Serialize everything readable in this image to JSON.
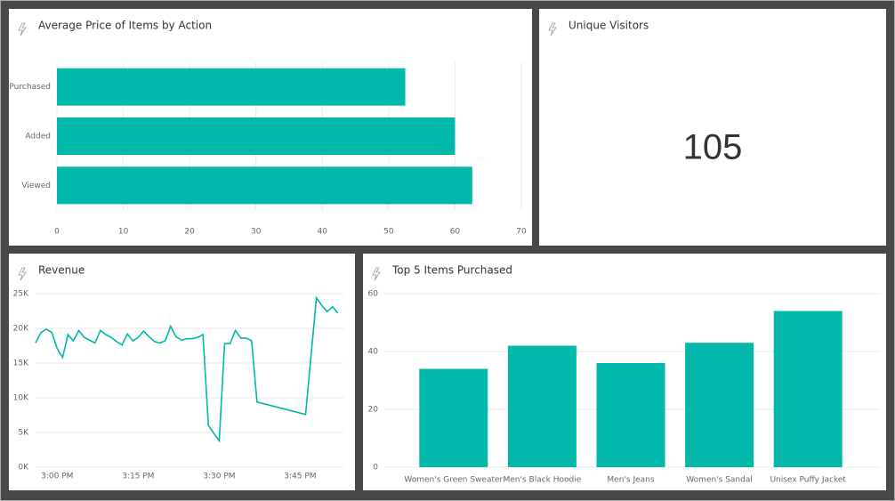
{
  "chart_data": [
    {
      "type": "bar",
      "orientation": "horizontal",
      "title": "Average Price of Items by Action",
      "categories": [
        "Purchased",
        "Added",
        "Viewed"
      ],
      "values": [
        52.5,
        60,
        62.6
      ],
      "color": "#01b8aa",
      "xlim": [
        0,
        70
      ],
      "xticks": [
        0,
        10,
        20,
        30,
        40,
        50,
        60,
        70
      ],
      "grid": true
    },
    {
      "type": "card",
      "title": "Unique Visitors",
      "value": 105
    },
    {
      "type": "line",
      "title": "Revenue",
      "color": "#01b8aa",
      "x": [
        "2:56 PM",
        "2:57 PM",
        "2:58 PM",
        "2:59 PM",
        "3:00 PM",
        "3:01 PM",
        "3:02 PM",
        "3:03 PM",
        "3:04 PM",
        "3:05 PM",
        "3:06 PM",
        "3:07 PM",
        "3:08 PM",
        "3:09 PM",
        "3:10 PM",
        "3:11 PM",
        "3:12 PM",
        "3:13 PM",
        "3:14 PM",
        "3:15 PM",
        "3:16 PM",
        "3:17 PM",
        "3:18 PM",
        "3:19 PM",
        "3:20 PM",
        "3:21 PM",
        "3:22 PM",
        "3:23 PM",
        "3:24 PM",
        "3:25 PM",
        "3:26 PM",
        "3:27 PM",
        "3:28 PM",
        "3:29 PM",
        "3:30 PM",
        "3:31 PM",
        "3:32 PM",
        "3:33 PM",
        "3:34 PM",
        "3:35 PM",
        "3:36 PM",
        "3:37 PM",
        "3:46 PM",
        "3:47 PM",
        "3:48 PM",
        "3:49 PM",
        "3:50 PM",
        "3:51 PM",
        "3:52 PM"
      ],
      "values": [
        17900,
        19400,
        19900,
        19400,
        17100,
        15800,
        19100,
        18200,
        19700,
        18700,
        18300,
        17900,
        19700,
        19100,
        18700,
        18100,
        17600,
        19200,
        18200,
        18700,
        19600,
        18800,
        18100,
        17900,
        18200,
        20300,
        18800,
        18300,
        18500,
        18500,
        18700,
        19100,
        6000,
        4900,
        3800,
        17800,
        17800,
        19700,
        18600,
        18600,
        18200,
        9400,
        7600,
        16000,
        24400,
        23300,
        22400,
        23100,
        22200
      ],
      "xlim": [
        "2:56 PM",
        "3:53 PM"
      ],
      "xticks": [
        "3:00 PM",
        "3:15 PM",
        "3:30 PM",
        "3:45 PM"
      ],
      "ylim": [
        0,
        25000
      ],
      "yticks": [
        {
          "value": 0,
          "label": "0K"
        },
        {
          "value": 5000,
          "label": "5K"
        },
        {
          "value": 10000,
          "label": "10K"
        },
        {
          "value": 15000,
          "label": "15K"
        },
        {
          "value": 20000,
          "label": "20K"
        },
        {
          "value": 25000,
          "label": "25K"
        }
      ],
      "grid": true
    },
    {
      "type": "bar",
      "title": "Top 5 Items Purchased",
      "categories": [
        "Women's Green Sweater",
        "Men's Black Hoodie",
        "Men's Jeans",
        "Women's Sandal",
        "Unisex Puffy Jacket"
      ],
      "values": [
        34,
        42,
        36,
        43,
        54
      ],
      "color": "#01b8aa",
      "ylim": [
        0,
        60
      ],
      "yticks": [
        0,
        20,
        40,
        60
      ],
      "grid": true
    }
  ]
}
